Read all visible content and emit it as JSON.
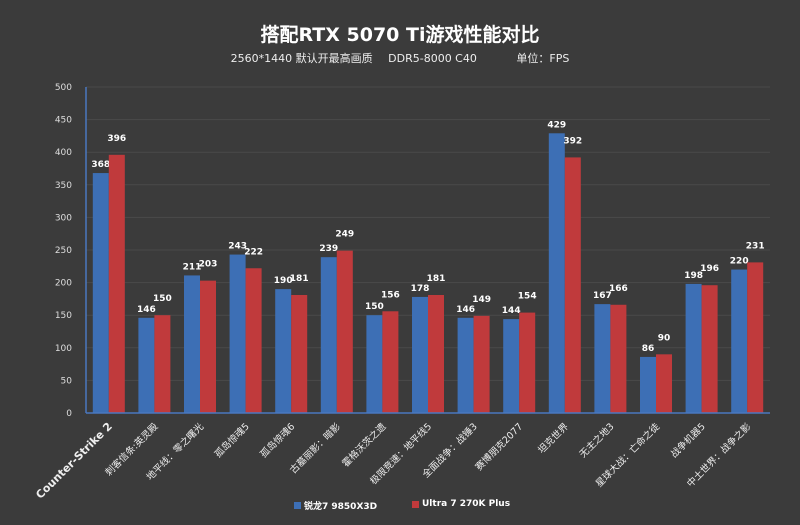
{
  "chart_data": {
    "type": "bar",
    "title": "搭配RTX 5070 Ti游戏性能对比",
    "subtitle": [
      "2560*1440 默认开最高画质",
      "DDR5-8000 C40",
      "单位：FPS"
    ],
    "categories": [
      "Counter-Strike 2",
      "刺客信条:英灵殿",
      "地平线：零之曙光",
      "孤岛惊魂5",
      "孤岛惊魂6",
      "古墓丽影：暗影",
      "霍格沃茨之遗",
      "极限竞速：地平线5",
      "全面战争：战锤3",
      "赛博朋克2077",
      "坦克世界",
      "无主之地3",
      "星球大战：亡命之徒",
      "战争机器5",
      "中土世界：战争之影"
    ],
    "series": [
      {
        "name": "锐龙7 9850X3D",
        "color": "#3d6fb5",
        "values": [
          368,
          146,
          211,
          243,
          190,
          239,
          150,
          178,
          146,
          144,
          429,
          167,
          86,
          198,
          220
        ]
      },
      {
        "name": "Ultra 7 270K Plus",
        "color": "#c03a3c",
        "values": [
          396,
          150,
          203,
          222,
          181,
          249,
          156,
          181,
          149,
          154,
          392,
          166,
          90,
          196,
          231
        ]
      }
    ],
    "ylim": [
      0,
      500
    ],
    "yticks": [
      0,
      50,
      100,
      150,
      200,
      250,
      300,
      350,
      400,
      450,
      500
    ],
    "grid": true,
    "legend": "bottom"
  }
}
